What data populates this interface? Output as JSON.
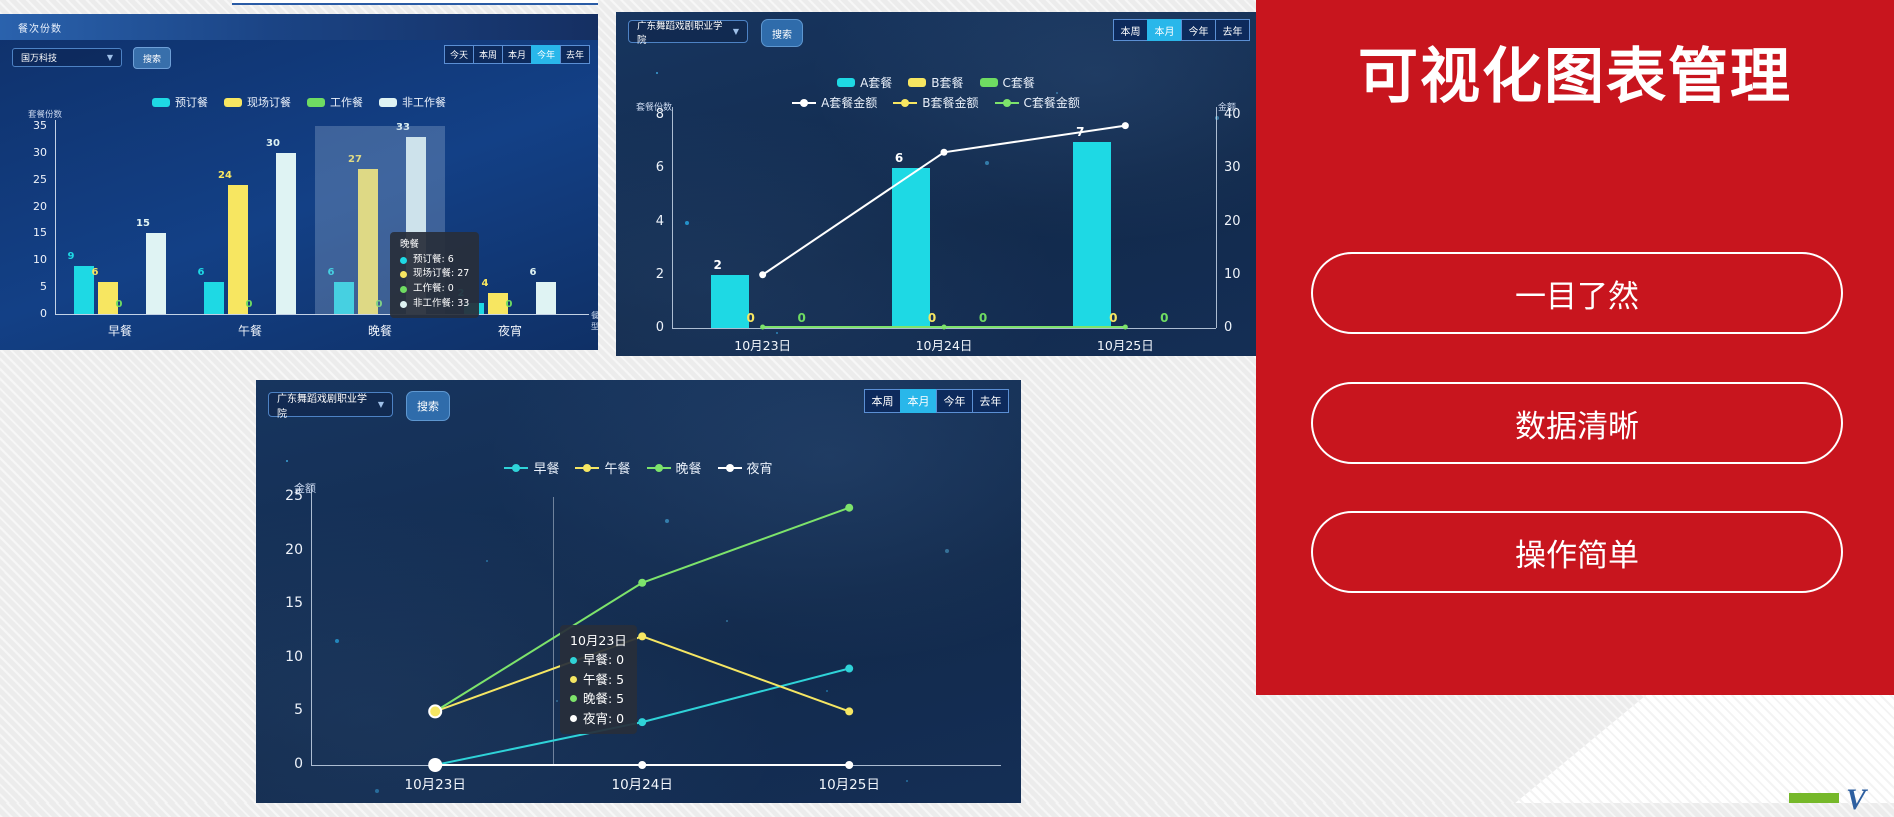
{
  "icons": {
    "chevron_down": "▼"
  },
  "common": {
    "search": "搜索"
  },
  "panel1": {
    "title": "餐次份数",
    "dropdown_value": "国万科技",
    "filters": {
      "options": [
        "今天",
        "本周",
        "本月",
        "今年",
        "去年"
      ],
      "active": "今年"
    }
  },
  "panel2": {
    "dropdown_value": "广东舞蹈戏剧职业学院",
    "filters": {
      "options": [
        "本周",
        "本月",
        "今年",
        "去年"
      ],
      "active": "本月"
    }
  },
  "panel3": {
    "dropdown_value": "广东舞蹈戏剧职业学院",
    "filters": {
      "options": [
        "本周",
        "本月",
        "今年",
        "去年"
      ],
      "active": "本月"
    }
  },
  "promo": {
    "title": "可视化图表管理",
    "buttons": [
      "一目了然",
      "数据清晰",
      "操作简单"
    ],
    "bg": "#c8151e"
  },
  "logo": {
    "letter": "V"
  },
  "chart_data": [
    {
      "type": "bar",
      "title": "餐次份数",
      "ylabel": "套餐份数",
      "xlabel": "餐型",
      "ylim": [
        0,
        35
      ],
      "yticks": [
        0,
        5,
        10,
        15,
        20,
        25,
        30,
        35
      ],
      "categories": [
        "早餐",
        "午餐",
        "晚餐",
        "夜宵"
      ],
      "series": [
        {
          "name": "预订餐",
          "color": "#1ed9e4",
          "values": [
            9,
            6,
            6,
            2
          ]
        },
        {
          "name": "现场订餐",
          "color": "#f7e661",
          "values": [
            6,
            24,
            27,
            4
          ]
        },
        {
          "name": "工作餐",
          "color": "#6fdc62",
          "values": [
            0,
            0,
            0,
            0
          ]
        },
        {
          "name": "非工作餐",
          "color": "#dff3f3",
          "values": [
            15,
            30,
            33,
            6
          ]
        }
      ],
      "highlight_category_index": 2,
      "tooltip": {
        "title": "晚餐",
        "rows": [
          {
            "name": "预订餐",
            "value": "6"
          },
          {
            "name": "现场订餐",
            "value": "27"
          },
          {
            "name": "工作餐",
            "value": "0"
          },
          {
            "name": "非工作餐",
            "value": "33"
          }
        ]
      },
      "legend_position": "top",
      "grid": false
    },
    {
      "type": "bar+line",
      "ylabel_left": "套餐份数",
      "ylabel_right": "金额",
      "ylim_left": [
        0,
        8
      ],
      "yticks_left": [
        0,
        2,
        4,
        6,
        8
      ],
      "ylim_right": [
        0,
        40
      ],
      "yticks_right": [
        0,
        10,
        20,
        30,
        40
      ],
      "categories": [
        "10月23日",
        "10月24日",
        "10月25日"
      ],
      "bar_series": [
        {
          "name": "A套餐",
          "color": "#1ed9e4",
          "values": [
            2,
            6,
            7
          ]
        },
        {
          "name": "B套餐",
          "color": "#f7e661",
          "values": [
            0,
            0,
            0
          ]
        },
        {
          "name": "C套餐",
          "color": "#6fdc62",
          "values": [
            0,
            0,
            0
          ]
        }
      ],
      "line_series": [
        {
          "name": "A套餐金额",
          "color": "#ffffff",
          "values": [
            10,
            33,
            38
          ]
        },
        {
          "name": "B套餐金额",
          "color": "#f7e661",
          "values": [
            0,
            0,
            0
          ]
        },
        {
          "name": "C套餐金额",
          "color": "#7de36b",
          "values": [
            0,
            0,
            0
          ]
        }
      ],
      "legend_position": "top",
      "grid": false
    },
    {
      "type": "line",
      "ylabel": "金额",
      "ylim": [
        0,
        25
      ],
      "yticks": [
        0,
        5,
        10,
        15,
        20,
        25
      ],
      "categories": [
        "10月23日",
        "10月24日",
        "10月25日"
      ],
      "series": [
        {
          "name": "早餐",
          "color": "#2fd3d8",
          "values": [
            0,
            4,
            9
          ]
        },
        {
          "name": "午餐",
          "color": "#f5e663",
          "values": [
            5,
            12,
            5
          ]
        },
        {
          "name": "晚餐",
          "color": "#7de36b",
          "values": [
            5,
            17,
            24
          ]
        },
        {
          "name": "夜宵",
          "color": "#ffffff",
          "values": [
            0,
            0,
            0
          ]
        }
      ],
      "pointer_x_fraction": 0.35,
      "tooltip": {
        "title": "10月23日",
        "rows": [
          {
            "name": "早餐",
            "value": "0"
          },
          {
            "name": "午餐",
            "value": "5"
          },
          {
            "name": "晚餐",
            "value": "5"
          },
          {
            "name": "夜宵",
            "value": "0"
          }
        ]
      },
      "legend_position": "top",
      "grid": false
    }
  ]
}
